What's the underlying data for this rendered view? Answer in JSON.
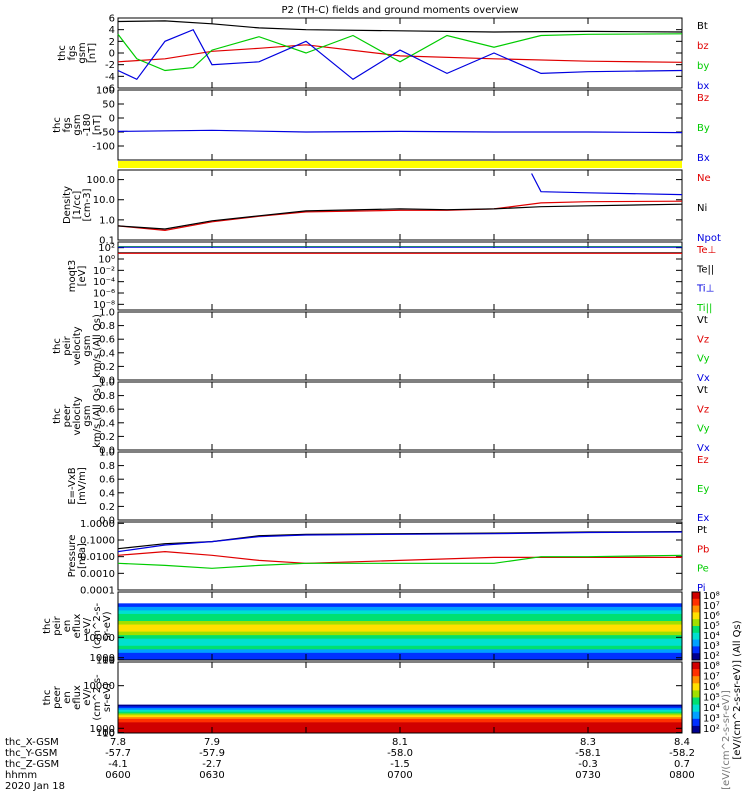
{
  "title": "P2 (TH-C) fields and ground moments overview",
  "colors": {
    "black": "#000000",
    "red": "#e00000",
    "green": "#00cc00",
    "blue": "#0000e0",
    "yellow": "#ffff00"
  },
  "chart_data": [
    {
      "type": "line",
      "name": "fgs",
      "ylabel_lines": [
        "thc",
        "fgs",
        "gsm",
        "[nT]"
      ],
      "ylim": [
        -6,
        6
      ],
      "yticks": [
        {
          "v": 6,
          "l": "6"
        },
        {
          "v": 4,
          "l": "4"
        },
        {
          "v": 2,
          "l": "2"
        },
        {
          "v": 0,
          "l": "0"
        },
        {
          "v": -2,
          "l": "-2"
        },
        {
          "v": -4,
          "l": "-4"
        },
        {
          "v": -6,
          "l": "-6"
        }
      ],
      "legend": [
        {
          "label": "Bt",
          "color": "black"
        },
        {
          "label": "bz",
          "color": "red"
        },
        {
          "label": "by",
          "color": "green"
        },
        {
          "label": "bx",
          "color": "blue"
        }
      ],
      "series": [
        {
          "name": "Bt",
          "color": "black",
          "x": [
            7.8,
            7.85,
            7.9,
            7.95,
            8.0,
            8.1,
            8.2,
            8.3,
            8.4
          ],
          "y": [
            5.4,
            5.5,
            5.0,
            4.3,
            4.0,
            3.8,
            3.6,
            3.7,
            3.6
          ]
        },
        {
          "name": "bz",
          "color": "red",
          "x": [
            7.8,
            7.85,
            7.9,
            7.95,
            8.0,
            8.1,
            8.2,
            8.3,
            8.4
          ],
          "y": [
            -1.5,
            -1.0,
            0.3,
            0.8,
            1.4,
            -0.5,
            -1.0,
            -1.4,
            -1.6
          ]
        },
        {
          "name": "by",
          "color": "green",
          "x": [
            7.8,
            7.82,
            7.85,
            7.88,
            7.9,
            7.95,
            8.0,
            8.05,
            8.1,
            8.15,
            8.2,
            8.25,
            8.3,
            8.4
          ],
          "y": [
            3.2,
            -1.0,
            -3.0,
            -2.5,
            0.5,
            2.8,
            0.0,
            3.0,
            -1.5,
            3.0,
            1.0,
            3.0,
            3.2,
            3.3
          ]
        },
        {
          "name": "bx",
          "color": "blue",
          "x": [
            7.8,
            7.82,
            7.85,
            7.88,
            7.9,
            7.95,
            8.0,
            8.05,
            8.1,
            8.15,
            8.2,
            8.25,
            8.3,
            8.4
          ],
          "y": [
            -3.0,
            -4.5,
            2.0,
            4.0,
            -2.0,
            -1.5,
            2.0,
            -4.5,
            0.5,
            -3.5,
            0.0,
            -3.5,
            -3.2,
            -3.0
          ]
        }
      ]
    },
    {
      "type": "line",
      "name": "fgs-180",
      "ylabel_lines": [
        "thc",
        "fgs",
        "gsm",
        "-180",
        "[nT]"
      ],
      "ylim": [
        -150,
        100
      ],
      "yticks": [
        {
          "v": 100,
          "l": "100"
        },
        {
          "v": 50,
          "l": "50"
        },
        {
          "v": 0,
          "l": "0"
        },
        {
          "v": -50,
          "l": "-50"
        },
        {
          "v": -100,
          "l": "-100"
        }
      ],
      "legend": [
        {
          "label": "Bz",
          "color": "red"
        },
        {
          "label": "By",
          "color": "green"
        },
        {
          "label": "Bx",
          "color": "blue"
        }
      ],
      "series": [
        {
          "name": "Bx",
          "color": "blue",
          "x": [
            7.8,
            7.9,
            8.0,
            8.1,
            8.2,
            8.3,
            8.4
          ],
          "y": [
            -48,
            -44,
            -50,
            -48,
            -50,
            -50,
            -52
          ]
        }
      ]
    },
    {
      "type": "line",
      "name": "density",
      "log": true,
      "ylabel_lines": [
        "Density",
        "[1/cc]",
        "[cm-3]"
      ],
      "ylim": [
        0.1,
        300
      ],
      "yticks": [
        {
          "v": 100,
          "l": "100.0"
        },
        {
          "v": 10,
          "l": "10.0"
        },
        {
          "v": 1,
          "l": "1.0"
        },
        {
          "v": 0.1,
          "l": "0.1"
        }
      ],
      "legend": [
        {
          "label": "Ne",
          "color": "red"
        },
        {
          "label": "Ni",
          "color": "black"
        },
        {
          "label": "Npot",
          "color": "blue"
        }
      ],
      "series": [
        {
          "name": "Ne",
          "color": "red",
          "x": [
            7.8,
            7.85,
            7.9,
            7.95,
            8.0,
            8.1,
            8.15,
            8.2,
            8.25,
            8.3,
            8.4
          ],
          "y": [
            0.5,
            0.3,
            0.8,
            1.5,
            2.5,
            3.0,
            3.0,
            3.5,
            7.0,
            8.0,
            8.5
          ]
        },
        {
          "name": "Ni",
          "color": "black",
          "x": [
            7.8,
            7.85,
            7.9,
            7.95,
            8.0,
            8.1,
            8.15,
            8.2,
            8.25,
            8.3,
            8.4
          ],
          "y": [
            0.5,
            0.35,
            0.9,
            1.6,
            2.8,
            3.5,
            3.2,
            3.5,
            4.5,
            5.0,
            6.0
          ]
        },
        {
          "name": "Npot",
          "color": "blue",
          "x": [
            8.24,
            8.25,
            8.3,
            8.4
          ],
          "y": [
            200,
            25,
            22,
            18
          ]
        }
      ]
    },
    {
      "type": "line",
      "name": "temperature",
      "log": true,
      "ylabel_lines": [
        "moqt3",
        "[eV]"
      ],
      "ylim": [
        1e-09,
        1000.0
      ],
      "yticks": [
        {
          "v": 100,
          "l": "10²"
        },
        {
          "v": 1,
          "l": "10⁰"
        },
        {
          "v": 0.01,
          "l": "10⁻²"
        },
        {
          "v": 0.0001,
          "l": "10⁻⁴"
        },
        {
          "v": 1e-06,
          "l": "10⁻⁶"
        },
        {
          "v": 1e-08,
          "l": "10⁻⁸"
        }
      ],
      "legend": [
        {
          "label": "Te⊥",
          "color": "red"
        },
        {
          "label": "Te||",
          "color": "black"
        },
        {
          "label": "Ti⊥",
          "color": "blue"
        },
        {
          "label": "Ti||",
          "color": "green"
        }
      ],
      "series": [
        {
          "name": "Ti",
          "color": "green",
          "x": [
            7.8,
            8.4
          ],
          "y": [
            150,
            150
          ]
        },
        {
          "name": "Ti⊥",
          "color": "blue",
          "x": [
            7.8,
            8.4
          ],
          "y": [
            120,
            120
          ]
        },
        {
          "name": "Te",
          "color": "black",
          "x": [
            7.8,
            8.4
          ],
          "y": [
            12,
            12
          ]
        },
        {
          "name": "Te⊥",
          "color": "red",
          "x": [
            7.8,
            8.4
          ],
          "y": [
            10,
            10
          ]
        }
      ]
    },
    {
      "type": "line",
      "name": "peir-velocity",
      "ylabel_lines": [
        "thc",
        "peir",
        "velocity",
        "gsm",
        "km/s (All Qs)"
      ],
      "ylim": [
        0,
        1
      ],
      "yticks": [
        {
          "v": 1,
          "l": "1.0"
        },
        {
          "v": 0.8,
          "l": "0.8"
        },
        {
          "v": 0.6,
          "l": "0.6"
        },
        {
          "v": 0.4,
          "l": "0.4"
        },
        {
          "v": 0.2,
          "l": "0.2"
        },
        {
          "v": 0,
          "l": "0.0"
        }
      ],
      "legend": [
        {
          "label": "Vt",
          "color": "black"
        },
        {
          "label": "Vz",
          "color": "red"
        },
        {
          "label": "Vy",
          "color": "green"
        },
        {
          "label": "Vx",
          "color": "blue"
        }
      ],
      "series": []
    },
    {
      "type": "line",
      "name": "peer-velocity",
      "ylabel_lines": [
        "thc",
        "peer",
        "velocity",
        "gsm",
        "km/s (All Qs)"
      ],
      "ylim": [
        0,
        1
      ],
      "yticks": [
        {
          "v": 1,
          "l": "1.0"
        },
        {
          "v": 0.8,
          "l": "0.8"
        },
        {
          "v": 0.6,
          "l": "0.6"
        },
        {
          "v": 0.4,
          "l": "0.4"
        },
        {
          "v": 0.2,
          "l": "0.2"
        },
        {
          "v": 0,
          "l": "0.0"
        }
      ],
      "legend": [
        {
          "label": "Vt",
          "color": "black"
        },
        {
          "label": "Vz",
          "color": "red"
        },
        {
          "label": "Vy",
          "color": "green"
        },
        {
          "label": "Vx",
          "color": "blue"
        }
      ],
      "series": []
    },
    {
      "type": "line",
      "name": "e-field",
      "ylabel_lines": [
        "E=-VxB",
        "[mV/m]"
      ],
      "ylim": [
        0,
        1
      ],
      "yticks": [
        {
          "v": 1,
          "l": "1.0"
        },
        {
          "v": 0.8,
          "l": "0.8"
        },
        {
          "v": 0.6,
          "l": "0.6"
        },
        {
          "v": 0.4,
          "l": "0.4"
        },
        {
          "v": 0.2,
          "l": "0.2"
        },
        {
          "v": 0,
          "l": "0.0"
        }
      ],
      "legend": [
        {
          "label": "Ez",
          "color": "red"
        },
        {
          "label": "Ey",
          "color": "green"
        },
        {
          "label": "Ex",
          "color": "blue"
        }
      ],
      "series": []
    },
    {
      "type": "line",
      "name": "pressure",
      "log": true,
      "ylabel_lines": [
        "Pressure",
        "[nPa]"
      ],
      "ylim": [
        0.0001,
        1.2
      ],
      "yticks": [
        {
          "v": 1,
          "l": "1.0000"
        },
        {
          "v": 0.1,
          "l": "0.1000"
        },
        {
          "v": 0.01,
          "l": "0.0100"
        },
        {
          "v": 0.001,
          "l": "0.0010"
        },
        {
          "v": 0.0001,
          "l": "0.0001"
        }
      ],
      "legend": [
        {
          "label": "Pt",
          "color": "black"
        },
        {
          "label": "Pb",
          "color": "red"
        },
        {
          "label": "Pe",
          "color": "green"
        },
        {
          "label": "Pi",
          "color": "blue"
        }
      ],
      "series": [
        {
          "name": "Pt",
          "color": "black",
          "x": [
            7.8,
            7.85,
            7.9,
            7.95,
            8.0,
            8.1,
            8.2,
            8.3,
            8.4
          ],
          "y": [
            0.03,
            0.06,
            0.08,
            0.18,
            0.22,
            0.24,
            0.26,
            0.3,
            0.32
          ]
        },
        {
          "name": "Pb",
          "color": "red",
          "x": [
            7.8,
            7.85,
            7.9,
            7.95,
            8.0,
            8.1,
            8.2,
            8.3,
            8.4
          ],
          "y": [
            0.012,
            0.02,
            0.012,
            0.006,
            0.004,
            0.006,
            0.009,
            0.009,
            0.009
          ]
        },
        {
          "name": "Pe",
          "color": "green",
          "x": [
            7.8,
            7.85,
            7.9,
            7.95,
            8.0,
            8.1,
            8.2,
            8.25,
            8.3,
            8.4
          ],
          "y": [
            0.004,
            0.003,
            0.002,
            0.003,
            0.004,
            0.004,
            0.004,
            0.01,
            0.01,
            0.012
          ]
        },
        {
          "name": "Pi",
          "color": "blue",
          "x": [
            7.8,
            7.85,
            7.9,
            7.95,
            8.0,
            8.1,
            8.2,
            8.3,
            8.4
          ],
          "y": [
            0.02,
            0.05,
            0.08,
            0.16,
            0.2,
            0.22,
            0.24,
            0.28,
            0.3
          ]
        }
      ]
    },
    {
      "type": "heatmap",
      "name": "peir-en-eflux",
      "ylabel_lines": [
        "thc",
        "peir",
        "en",
        "eflux",
        "eV/",
        "(cm^2-s-",
        "sr-eV)"
      ],
      "ylim": [
        1,
        30000
      ],
      "yticks": [
        {
          "v": 10000,
          "l": "10000"
        },
        {
          "v": 1000,
          "l": "1000"
        },
        {
          "v": 100,
          "l": "100"
        },
        {
          "v": 10,
          "l": "10"
        },
        {
          "v": 1,
          "l": "1"
        }
      ],
      "energy_range": [
        40,
        25000
      ]
    },
    {
      "type": "heatmap",
      "name": "peer-en-eflux",
      "ylabel_lines": [
        "thc",
        "peer",
        "en",
        "eflux",
        "eV/",
        "(cm^2-s-",
        "sr-eV)"
      ],
      "ylim": [
        5,
        15000
      ],
      "yticks": [
        {
          "v": 10000,
          "l": "10000"
        },
        {
          "v": 1000,
          "l": "1000"
        },
        {
          "v": 100,
          "l": "100"
        },
        {
          "v": 10,
          "l": "10"
        }
      ],
      "energy_range": [
        5,
        6000
      ]
    }
  ],
  "colorbars": [
    {
      "ticks": [
        "10⁸",
        "10⁷",
        "10⁶",
        "10⁵",
        "10⁴",
        "10³",
        "10²"
      ],
      "label": "[eV/(cm^2-s-sr-eV)] (All Qs)"
    },
    {
      "ticks": [
        "10⁸",
        "10⁷",
        "10⁶",
        "10⁵",
        "10⁴",
        "10³",
        "10²"
      ],
      "label": "[eV/(cm^2-s-sr-eV)]"
    }
  ],
  "xaxis": {
    "xlim": [
      7.8,
      8.4
    ],
    "tick_values": [
      7.8,
      7.9,
      8.0,
      8.1,
      8.2,
      8.3,
      8.4
    ],
    "rows": [
      {
        "label": "thc_X-GSM",
        "values": [
          "7.8",
          "7.9",
          "8.1",
          "8.3",
          "8.4"
        ]
      },
      {
        "label": "thc_Y-GSM",
        "values": [
          "-57.7",
          "-57.9",
          "-58.0",
          "-58.1",
          "-58.2"
        ]
      },
      {
        "label": "thc_Z-GSM",
        "values": [
          "-4.1",
          "-2.7",
          "-1.5",
          "-0.3",
          "0.7"
        ]
      },
      {
        "label": "hhmm",
        "values": [
          "0600",
          "0630",
          "0700",
          "0730",
          "0800"
        ]
      }
    ],
    "date": "2020 Jan 18"
  }
}
